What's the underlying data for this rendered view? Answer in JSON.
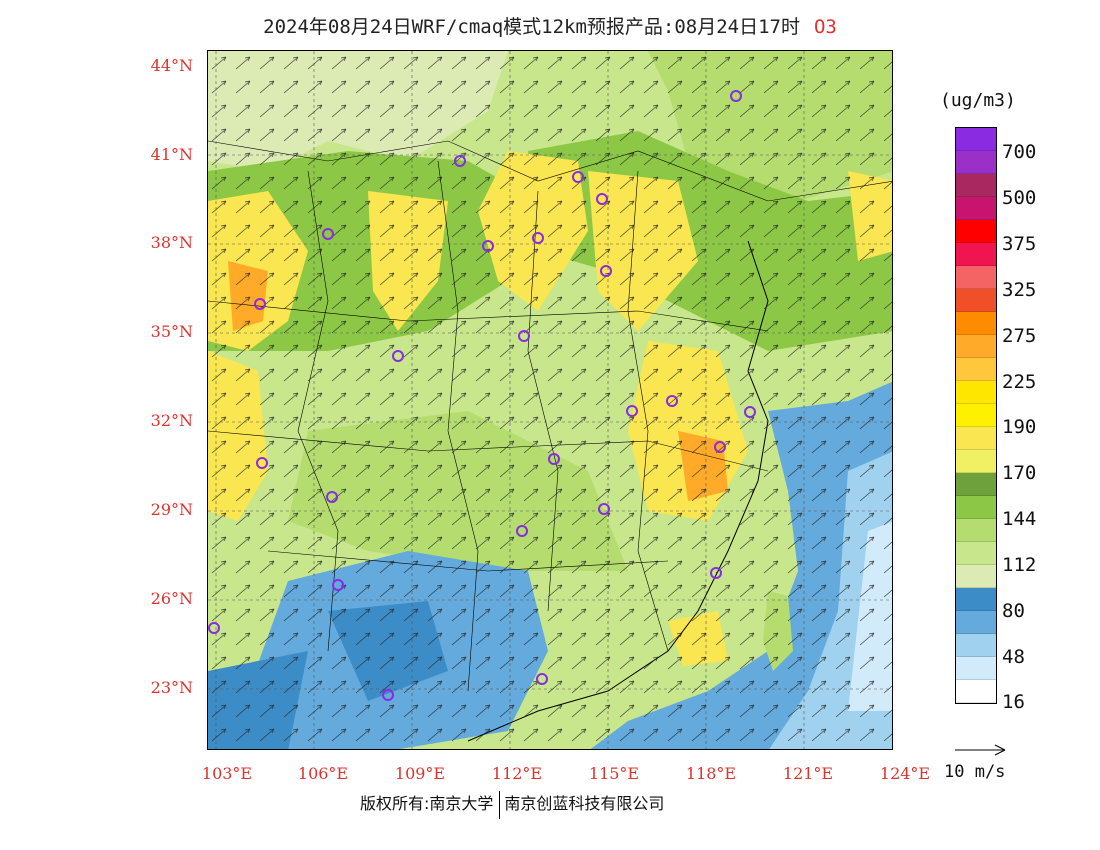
{
  "title": "2024年08月24日WRF/cmaq模式12km预报产品:08月24日17时",
  "species": "O3",
  "units": "(ug/m3)",
  "lat_labels": [
    "44°N",
    "41°N",
    "38°N",
    "35°N",
    "32°N",
    "29°N",
    "26°N",
    "23°N"
  ],
  "lon_labels": [
    "103°E",
    "106°E",
    "109°E",
    "112°E",
    "115°E",
    "118°E",
    "121°E",
    "124°E"
  ],
  "colorbar": {
    "labels": [
      "700",
      "500",
      "375",
      "325",
      "275",
      "225",
      "190",
      "170",
      "144",
      "112",
      "80",
      "48",
      "16"
    ],
    "colors": [
      "#8a2be2",
      "#9b30c8",
      "#a8285f",
      "#c8146e",
      "#ff0000",
      "#f01450",
      "#f56464",
      "#f05028",
      "#ff8c00",
      "#ffaa28",
      "#ffc83c",
      "#ffe600",
      "#fff000",
      "#fae650",
      "#f0f064",
      "#6ea03c",
      "#8cc846",
      "#b4dc6e",
      "#c8e68c",
      "#dcebb4",
      "#3c8cc8",
      "#64aadc",
      "#a0d2f0",
      "#d2ebfa",
      "#ffffff"
    ]
  },
  "reference_vector": "10 m/s",
  "copyright": {
    "left": "版权所有:南京大学",
    "right": "南京创蓝科技有限公司"
  },
  "icons": {
    "city_marker": "circle-marker-icon",
    "wind_vector": "arrow-icon"
  }
}
